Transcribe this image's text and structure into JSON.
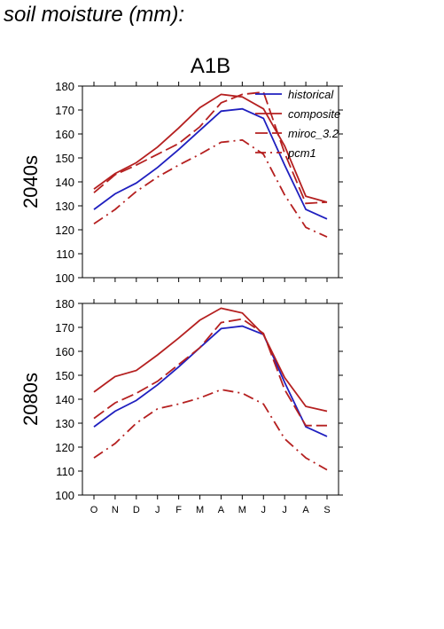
{
  "figure_title": "soil moisture (mm):",
  "chart_data": [
    {
      "type": "line",
      "title": "A1B",
      "ylabel": "2040s",
      "xlabel": "",
      "categories": [
        "O",
        "N",
        "D",
        "J",
        "F",
        "M",
        "A",
        "M",
        "J",
        "J",
        "A",
        "S"
      ],
      "ylim": [
        100,
        180
      ],
      "yticks": [
        100,
        110,
        120,
        130,
        140,
        150,
        160,
        170,
        180
      ],
      "grid": false,
      "legend": "top-right",
      "series": [
        {
          "name": "historical",
          "color": "#1f1fbf",
          "dash": "solid",
          "values": [
            128.5,
            135,
            139.5,
            146,
            153.5,
            161.5,
            169.5,
            170.5,
            166.5,
            147,
            128.5,
            124.5
          ]
        },
        {
          "name": "composite",
          "color": "#b52020",
          "dash": "solid",
          "values": [
            137,
            143.5,
            148,
            154.5,
            162.5,
            171,
            176.5,
            175.5,
            170.5,
            155,
            134,
            131.5
          ]
        },
        {
          "name": "miroc_3.2",
          "color": "#b52020",
          "dash": "dashed",
          "values": [
            135.5,
            143,
            147,
            151.5,
            156,
            163,
            173,
            176.5,
            177.5,
            152,
            131,
            131.5
          ]
        },
        {
          "name": "pcm1",
          "color": "#b52020",
          "dash": "dashdot",
          "values": [
            122.5,
            128.5,
            136,
            142,
            147,
            151.5,
            156.5,
            157.5,
            151.5,
            134.5,
            121,
            117
          ]
        }
      ]
    },
    {
      "type": "line",
      "title": "",
      "ylabel": "2080s",
      "xlabel": "",
      "categories": [
        "O",
        "N",
        "D",
        "J",
        "F",
        "M",
        "A",
        "M",
        "J",
        "J",
        "A",
        "S"
      ],
      "ylim": [
        100,
        180
      ],
      "yticks": [
        100,
        110,
        120,
        130,
        140,
        150,
        160,
        170,
        180
      ],
      "grid": false,
      "legend": "none",
      "series": [
        {
          "name": "historical",
          "color": "#1f1fbf",
          "dash": "solid",
          "values": [
            128.5,
            135,
            139.5,
            146,
            153.5,
            161.5,
            169.5,
            170.5,
            167,
            147,
            128.5,
            124.5
          ]
        },
        {
          "name": "composite",
          "color": "#b52020",
          "dash": "solid",
          "values": [
            143,
            149.5,
            152,
            158.5,
            165.5,
            173,
            178,
            176,
            167,
            149,
            137,
            135
          ]
        },
        {
          "name": "miroc_3.2",
          "color": "#b52020",
          "dash": "dashed",
          "values": [
            132,
            138.5,
            142.5,
            147.5,
            154.5,
            161.5,
            172,
            173.5,
            167.5,
            144,
            129,
            129
          ]
        },
        {
          "name": "pcm1",
          "color": "#b52020",
          "dash": "dashdot",
          "values": [
            115.5,
            121.5,
            130,
            136,
            138,
            140.5,
            144,
            142.5,
            138,
            123.5,
            115.5,
            110.5
          ]
        }
      ]
    }
  ]
}
